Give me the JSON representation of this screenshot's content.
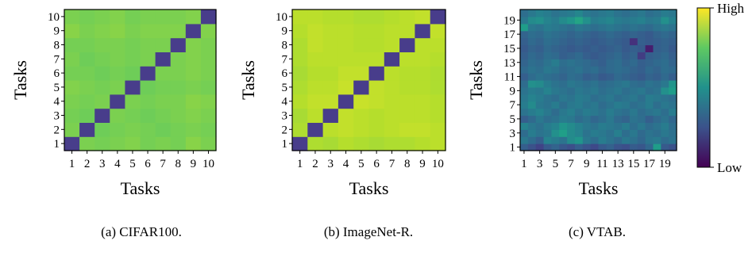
{
  "chart_data": [
    {
      "type": "heatmap",
      "caption": "(a) CIFAR100.",
      "xlabel": "Tasks",
      "ylabel": "Tasks",
      "x_ticks": [
        1,
        2,
        3,
        4,
        5,
        6,
        7,
        8,
        9,
        10
      ],
      "y_ticks": [
        1,
        2,
        3,
        4,
        5,
        6,
        7,
        8,
        9,
        10
      ],
      "size": 10,
      "diagonal": "low",
      "value_range": [
        0,
        1
      ],
      "off_diagonal_values": [
        [
          null,
          0.8,
          0.79,
          0.8,
          0.81,
          0.79,
          0.8,
          0.79,
          0.82,
          0.8
        ],
        [
          0.8,
          null,
          0.78,
          0.79,
          0.8,
          0.79,
          0.78,
          0.79,
          0.8,
          0.79
        ],
        [
          0.79,
          0.78,
          null,
          0.8,
          0.79,
          0.78,
          0.79,
          0.8,
          0.81,
          0.8
        ],
        [
          0.8,
          0.79,
          0.8,
          null,
          0.8,
          0.79,
          0.8,
          0.8,
          0.82,
          0.81
        ],
        [
          0.81,
          0.8,
          0.79,
          0.8,
          null,
          0.78,
          0.79,
          0.79,
          0.8,
          0.79
        ],
        [
          0.79,
          0.79,
          0.78,
          0.79,
          0.78,
          null,
          0.8,
          0.8,
          0.81,
          0.8
        ],
        [
          0.8,
          0.78,
          0.79,
          0.8,
          0.79,
          0.8,
          null,
          0.8,
          0.81,
          0.8
        ],
        [
          0.79,
          0.79,
          0.8,
          0.8,
          0.79,
          0.8,
          0.8,
          null,
          0.81,
          0.8
        ],
        [
          0.82,
          0.8,
          0.81,
          0.82,
          0.8,
          0.81,
          0.81,
          0.81,
          null,
          0.81
        ],
        [
          0.8,
          0.79,
          0.8,
          0.81,
          0.79,
          0.8,
          0.8,
          0.8,
          0.81,
          null
        ]
      ]
    },
    {
      "type": "heatmap",
      "caption": "(b) ImageNet-R.",
      "xlabel": "Tasks",
      "ylabel": "Tasks",
      "x_ticks": [
        1,
        2,
        3,
        4,
        5,
        6,
        7,
        8,
        9,
        10
      ],
      "y_ticks": [
        1,
        2,
        3,
        4,
        5,
        6,
        7,
        8,
        9,
        10
      ],
      "size": 10,
      "diagonal": "low",
      "value_range": [
        0,
        1
      ],
      "off_diagonal_values": [
        [
          null,
          0.88,
          0.87,
          0.89,
          0.88,
          0.87,
          0.88,
          0.88,
          0.89,
          0.9
        ],
        [
          0.88,
          null,
          0.9,
          0.91,
          0.9,
          0.89,
          0.9,
          0.91,
          0.91,
          0.9
        ],
        [
          0.87,
          0.9,
          null,
          0.91,
          0.9,
          0.89,
          0.9,
          0.9,
          0.9,
          0.89
        ],
        [
          0.89,
          0.91,
          0.91,
          null,
          0.92,
          0.91,
          0.9,
          0.9,
          0.9,
          0.89
        ],
        [
          0.88,
          0.9,
          0.9,
          0.92,
          null,
          0.91,
          0.9,
          0.89,
          0.89,
          0.88
        ],
        [
          0.87,
          0.89,
          0.89,
          0.91,
          0.91,
          null,
          0.9,
          0.89,
          0.89,
          0.88
        ],
        [
          0.88,
          0.9,
          0.9,
          0.9,
          0.9,
          0.9,
          null,
          0.9,
          0.9,
          0.89
        ],
        [
          0.88,
          0.91,
          0.9,
          0.9,
          0.89,
          0.89,
          0.9,
          null,
          0.9,
          0.9
        ],
        [
          0.89,
          0.91,
          0.9,
          0.9,
          0.89,
          0.89,
          0.9,
          0.9,
          null,
          0.91
        ],
        [
          0.9,
          0.9,
          0.89,
          0.89,
          0.88,
          0.88,
          0.89,
          0.9,
          0.91,
          null
        ]
      ]
    },
    {
      "type": "heatmap",
      "caption": "(c) VTAB.",
      "xlabel": "Tasks",
      "ylabel": "Tasks",
      "x_ticks": [
        1,
        3,
        5,
        7,
        9,
        11,
        13,
        15,
        17,
        19
      ],
      "y_ticks": [
        1,
        3,
        5,
        7,
        9,
        11,
        13,
        15,
        17,
        19
      ],
      "size": 20,
      "diagonal": "none",
      "value_range": [
        0,
        1
      ],
      "values": [
        [
          0.3,
          0.25,
          0.2,
          0.28,
          0.32,
          0.27,
          0.24,
          0.3,
          0.26,
          0.22,
          0.28,
          0.31,
          0.26,
          0.24,
          0.29,
          0.27,
          0.33,
          0.55,
          0.28,
          0.25
        ],
        [
          0.4,
          0.35,
          0.3,
          0.45,
          0.42,
          0.38,
          0.48,
          0.52,
          0.4,
          0.36,
          0.42,
          0.38,
          0.34,
          0.4,
          0.37,
          0.33,
          0.39,
          0.41,
          0.35,
          0.38
        ],
        [
          0.35,
          0.42,
          0.38,
          0.4,
          0.5,
          0.56,
          0.48,
          0.45,
          0.38,
          0.42,
          0.4,
          0.37,
          0.43,
          0.36,
          0.4,
          0.34,
          0.38,
          0.36,
          0.4,
          0.37
        ],
        [
          0.45,
          0.4,
          0.37,
          0.42,
          0.45,
          0.52,
          0.48,
          0.44,
          0.4,
          0.38,
          0.42,
          0.4,
          0.38,
          0.42,
          0.36,
          0.4,
          0.35,
          0.38,
          0.42,
          0.36
        ],
        [
          0.3,
          0.34,
          0.4,
          0.36,
          0.38,
          0.42,
          0.4,
          0.35,
          0.38,
          0.33,
          0.36,
          0.4,
          0.34,
          0.32,
          0.38,
          0.36,
          0.3,
          0.34,
          0.38,
          0.33
        ],
        [
          0.38,
          0.42,
          0.45,
          0.4,
          0.35,
          0.4,
          0.43,
          0.38,
          0.42,
          0.4,
          0.37,
          0.42,
          0.38,
          0.36,
          0.4,
          0.35,
          0.38,
          0.4,
          0.36,
          0.42
        ],
        [
          0.42,
          0.48,
          0.4,
          0.38,
          0.42,
          0.36,
          0.4,
          0.42,
          0.38,
          0.4,
          0.35,
          0.38,
          0.42,
          0.4,
          0.36,
          0.38,
          0.42,
          0.36,
          0.4,
          0.38
        ],
        [
          0.4,
          0.45,
          0.42,
          0.38,
          0.36,
          0.4,
          0.38,
          0.42,
          0.4,
          0.36,
          0.38,
          0.4,
          0.36,
          0.38,
          0.4,
          0.36,
          0.42,
          0.4,
          0.38,
          0.36
        ],
        [
          0.38,
          0.42,
          0.4,
          0.45,
          0.4,
          0.38,
          0.36,
          0.4,
          0.38,
          0.4,
          0.36,
          0.38,
          0.4,
          0.36,
          0.38,
          0.4,
          0.36,
          0.38,
          0.5,
          0.55
        ],
        [
          0.35,
          0.5,
          0.48,
          0.42,
          0.38,
          0.36,
          0.4,
          0.38,
          0.36,
          0.38,
          0.34,
          0.36,
          0.38,
          0.4,
          0.36,
          0.34,
          0.38,
          0.36,
          0.4,
          0.52
        ],
        [
          0.3,
          0.35,
          0.38,
          0.36,
          0.34,
          0.32,
          0.36,
          0.34,
          0.3,
          0.32,
          0.28,
          0.3,
          0.34,
          0.32,
          0.3,
          0.28,
          0.32,
          0.3,
          0.34,
          0.3
        ],
        [
          0.34,
          0.38,
          0.36,
          0.4,
          0.38,
          0.34,
          0.36,
          0.38,
          0.34,
          0.36,
          0.32,
          0.34,
          0.36,
          0.34,
          0.32,
          0.3,
          0.34,
          0.32,
          0.36,
          0.34
        ],
        [
          0.32,
          0.36,
          0.34,
          0.38,
          0.42,
          0.36,
          0.38,
          0.36,
          0.34,
          0.32,
          0.3,
          0.34,
          0.36,
          0.32,
          0.34,
          0.3,
          0.32,
          0.34,
          0.36,
          0.32
        ],
        [
          0.3,
          0.34,
          0.32,
          0.36,
          0.34,
          0.3,
          0.32,
          0.34,
          0.3,
          0.28,
          0.3,
          0.32,
          0.34,
          0.3,
          0.32,
          0.18,
          0.3,
          0.32,
          0.34,
          0.3
        ],
        [
          0.28,
          0.32,
          0.3,
          0.34,
          0.32,
          0.3,
          0.28,
          0.3,
          0.28,
          0.3,
          0.28,
          0.3,
          0.32,
          0.28,
          0.3,
          0.28,
          0.08,
          0.3,
          0.32,
          0.28
        ],
        [
          0.3,
          0.34,
          0.32,
          0.36,
          0.34,
          0.32,
          0.3,
          0.32,
          0.3,
          0.28,
          0.3,
          0.32,
          0.3,
          0.28,
          0.14,
          0.3,
          0.28,
          0.3,
          0.32,
          0.3
        ],
        [
          0.32,
          0.36,
          0.34,
          0.38,
          0.36,
          0.34,
          0.32,
          0.34,
          0.32,
          0.3,
          0.32,
          0.34,
          0.32,
          0.3,
          0.32,
          0.3,
          0.28,
          0.32,
          0.34,
          0.32
        ],
        [
          0.55,
          0.4,
          0.38,
          0.42,
          0.4,
          0.38,
          0.36,
          0.4,
          0.38,
          0.36,
          0.38,
          0.4,
          0.38,
          0.36,
          0.38,
          0.36,
          0.34,
          0.38,
          0.4,
          0.38
        ],
        [
          0.4,
          0.48,
          0.5,
          0.45,
          0.42,
          0.48,
          0.52,
          0.58,
          0.5,
          0.42,
          0.44,
          0.46,
          0.42,
          0.4,
          0.42,
          0.44,
          0.4,
          0.42,
          0.5,
          0.44
        ],
        [
          0.36,
          0.4,
          0.44,
          0.42,
          0.38,
          0.4,
          0.42,
          0.46,
          0.4,
          0.38,
          0.4,
          0.42,
          0.38,
          0.36,
          0.38,
          0.4,
          0.36,
          0.38,
          0.42,
          0.4
        ]
      ]
    }
  ],
  "colorbar": {
    "high_label": "High",
    "low_label": "Low"
  }
}
